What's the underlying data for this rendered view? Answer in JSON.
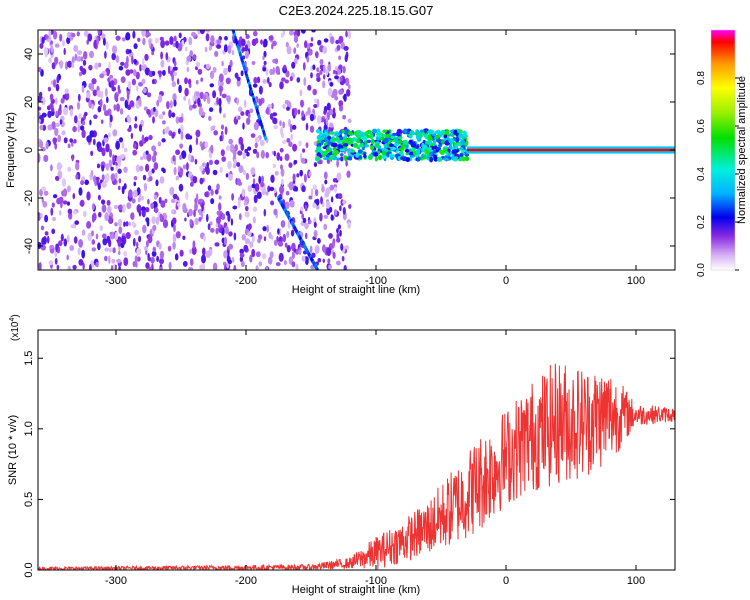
{
  "figure_title": "C2E3.2024.225.18.15.G07",
  "chart_data": [
    {
      "type": "heatmap",
      "title": "C2E3.2024.225.18.15.G07",
      "xlabel": "Height of straight line (km)",
      "ylabel": "Frequency (Hz)",
      "xlim": [
        -360,
        130
      ],
      "ylim": [
        -50,
        50
      ],
      "xticks": [
        -300,
        -200,
        -100,
        0,
        100
      ],
      "xtick_labels": [
        "-300",
        "-200",
        "-100",
        "0",
        "100"
      ],
      "yticks": [
        -40,
        -20,
        0,
        20,
        40
      ],
      "ytick_labels": [
        "-40",
        "-20",
        "0",
        "20",
        "40"
      ],
      "colorbar": {
        "label": "Normalized spectral amplitude",
        "range": [
          0,
          1
        ],
        "ticks": [
          0.0,
          0.2,
          0.4,
          0.6,
          0.8
        ],
        "tick_labels": [
          "0.0",
          "0.2",
          "0.4",
          "0.6",
          "0.8"
        ]
      },
      "regions": [
        {
          "name": "noise",
          "x": [
            -360,
            -120
          ],
          "y": [
            -50,
            50
          ],
          "level": 0.15
        },
        {
          "name": "signal_onset",
          "x": [
            -145,
            -30
          ],
          "center_hz": 2,
          "spread_hz": 6,
          "level": 0.4
        },
        {
          "name": "carrier",
          "x": [
            -30,
            130
          ],
          "center_hz": 0,
          "spread_hz": 1.5,
          "level": 0.95
        }
      ],
      "streaks": [
        {
          "x": [
            -210,
            -185
          ],
          "y": [
            50,
            5
          ]
        },
        {
          "x": [
            -175,
            -145
          ],
          "y": [
            -20,
            -50
          ]
        }
      ]
    },
    {
      "type": "line",
      "xlabel": "Height of straight line (km)",
      "ylabel": "SNR (10 * v/v)",
      "scale_label": "(x10",
      "scale_exp": "4",
      "scale_close": ")",
      "xlim": [
        -360,
        130
      ],
      "ylim": [
        0,
        1.7
      ],
      "xticks": [
        -300,
        -200,
        -100,
        0,
        100
      ],
      "xtick_labels": [
        "-300",
        "-200",
        "-100",
        "0",
        "100"
      ],
      "yticks": [
        0.0,
        0.5,
        1.0,
        1.5
      ],
      "ytick_labels": [
        "0.0",
        "0.5",
        "1.0",
        "1.5"
      ],
      "series": [
        {
          "name": "SNR",
          "color": "#ee3333",
          "envelope": {
            "x": [
              -360,
              -150,
              -120,
              -100,
              -80,
              -60,
              -40,
              -20,
              0,
              20,
              40,
              60,
              80,
              100,
              130
            ],
            "mean": [
              0.01,
              0.02,
              0.05,
              0.12,
              0.2,
              0.3,
              0.45,
              0.62,
              0.8,
              0.95,
              1.05,
              1.05,
              1.1,
              1.1,
              1.1
            ],
            "amp": [
              0.01,
              0.02,
              0.04,
              0.12,
              0.15,
              0.2,
              0.28,
              0.35,
              0.35,
              0.4,
              0.45,
              0.4,
              0.35,
              0.08,
              0.05
            ]
          }
        }
      ]
    }
  ]
}
